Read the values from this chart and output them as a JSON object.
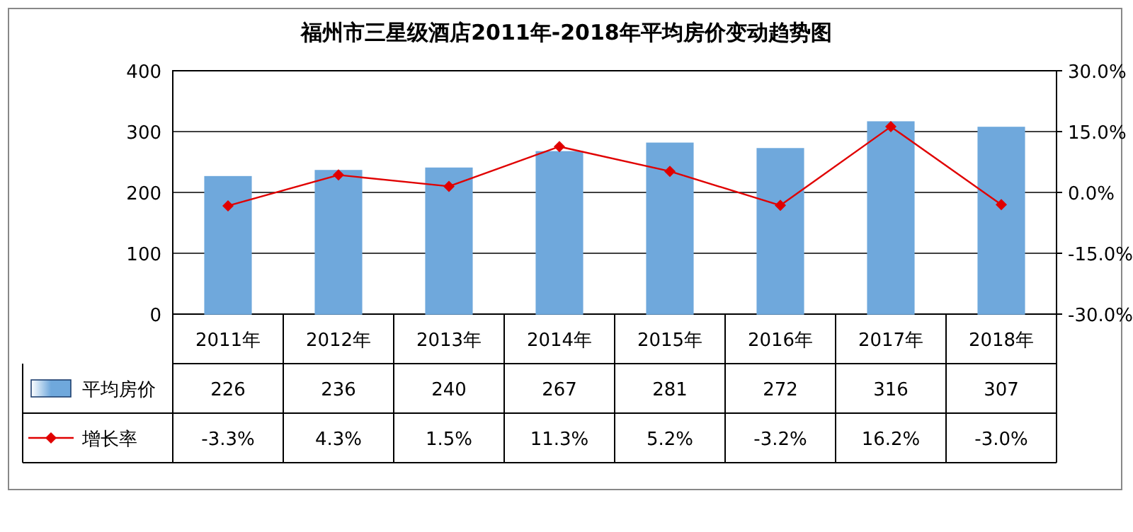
{
  "chart_data": {
    "type": "bar",
    "title": "福州市三星级酒店2011年-2018年平均房价变动趋势图",
    "categories": [
      "2011年",
      "2012年",
      "2013年",
      "2014年",
      "2015年",
      "2016年",
      "2017年",
      "2018年"
    ],
    "series": [
      {
        "name": "平均房价",
        "color": "#6fa8dc",
        "values": [
          226,
          236,
          240,
          267,
          281,
          272,
          316,
          307
        ],
        "value_labels": [
          "226",
          "236",
          "240",
          "267",
          "281",
          "272",
          "316",
          "307"
        ]
      },
      {
        "name": "增长率",
        "type": "line",
        "axis": "y2",
        "marker": "diamond",
        "color": "#e00000",
        "values": [
          -3.3,
          4.3,
          1.5,
          11.3,
          5.2,
          -3.2,
          16.2,
          -3.0
        ],
        "value_labels": [
          "-3.3%",
          "4.3%",
          "1.5%",
          "11.3%",
          "5.2%",
          "-3.2%",
          "16.2%",
          "-3.0%"
        ]
      }
    ],
    "ylim": [
      0,
      400
    ],
    "yticks": [
      0,
      100,
      200,
      300,
      400
    ],
    "y2lim": [
      -30,
      30
    ],
    "y2ticks": [
      {
        "value": -30,
        "label": "-30.0%"
      },
      {
        "value": -15,
        "label": "-15.0%"
      },
      {
        "value": 0,
        "label": "0.0%"
      },
      {
        "value": 15,
        "label": "15.0%"
      },
      {
        "value": 30,
        "label": "30.0%"
      }
    ],
    "grid": "y",
    "legend": "bottom"
  }
}
